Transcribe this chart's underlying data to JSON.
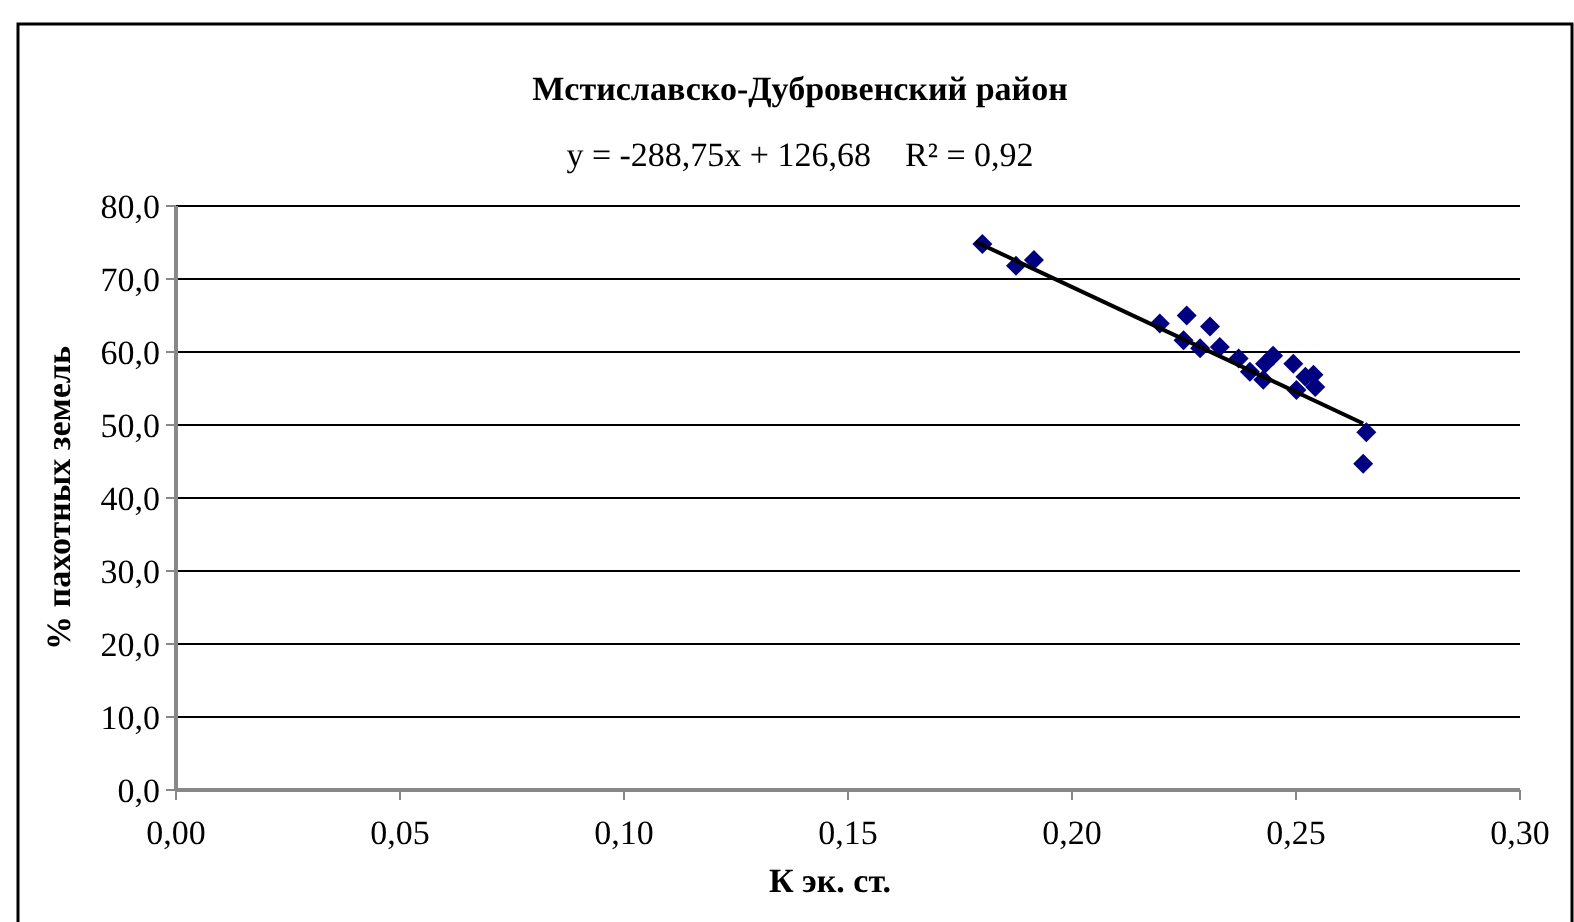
{
  "chart_data": {
    "type": "scatter",
    "title": "Мстиславско-Дубровенский район",
    "subtitle": "y = -288,75x + 126,68    R² = 0,92",
    "xlabel": "К эк. ст.",
    "ylabel": "% пахотных земель",
    "xlim": [
      0,
      0.3
    ],
    "xticks": [
      {
        "value": 0,
        "label": "0,00"
      },
      {
        "value": 0.05,
        "label": "0,05"
      },
      {
        "value": 0.1,
        "label": "0,10"
      },
      {
        "value": 0.15,
        "label": "0,15"
      },
      {
        "value": 0.2,
        "label": "0,20"
      },
      {
        "value": 0.25,
        "label": "0,25"
      },
      {
        "value": 0.3,
        "label": "0,30"
      }
    ],
    "ylim": [
      0,
      80
    ],
    "yticks": [
      {
        "value": 0,
        "label": "0,0"
      },
      {
        "value": 10,
        "label": "10,0"
      },
      {
        "value": 20,
        "label": "20,0"
      },
      {
        "value": 30,
        "label": "30,0"
      },
      {
        "value": 40,
        "label": "40,0"
      },
      {
        "value": 50,
        "label": "50,0"
      },
      {
        "value": 60,
        "label": "60,0"
      },
      {
        "value": 70,
        "label": "70,0"
      },
      {
        "value": 80,
        "label": "80,0"
      }
    ],
    "grid": "y",
    "series": [
      {
        "color": "#000080",
        "marker": "diamond",
        "x": [
          0.18,
          0.1875,
          0.1915,
          0.2196,
          0.2256,
          0.2249,
          0.2286,
          0.2308,
          0.233,
          0.2372,
          0.2397,
          0.2427,
          0.2431,
          0.2449,
          0.2494,
          0.2501,
          0.2521,
          0.2539,
          0.2543,
          0.2657,
          0.265
        ],
        "values": [
          74.8,
          71.8,
          72.6,
          63.9,
          65.0,
          61.6,
          60.5,
          63.5,
          60.7,
          59.1,
          57.3,
          56.2,
          58.4,
          59.5,
          58.4,
          54.8,
          56.6,
          56.9,
          55.2,
          49.0,
          44.7
        ]
      },
      {
        "type": "line",
        "color": "#000000",
        "marker": "none",
        "x": [
          0.1785,
          0.265
        ],
        "values": [
          75.1,
          50.2
        ]
      }
    ]
  }
}
